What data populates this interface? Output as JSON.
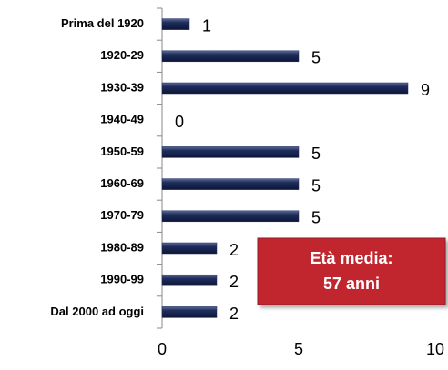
{
  "chart_data": {
    "type": "bar",
    "orientation": "horizontal",
    "categories": [
      "Prima del 1920",
      "1920-29",
      "1930-39",
      "1940-49",
      "1950-59",
      "1960-69",
      "1970-79",
      "1980-89",
      "1990-99",
      "Dal 2000 ad oggi"
    ],
    "values": [
      1,
      5,
      9,
      0,
      5,
      5,
      5,
      2,
      2,
      2
    ],
    "color": "#1f2d5c",
    "xlim": [
      0,
      10
    ],
    "xticks": [
      0,
      5,
      10
    ],
    "annotation": [
      "Età media:",
      "57 anni"
    ],
    "annotation_color": "#c1272d"
  }
}
